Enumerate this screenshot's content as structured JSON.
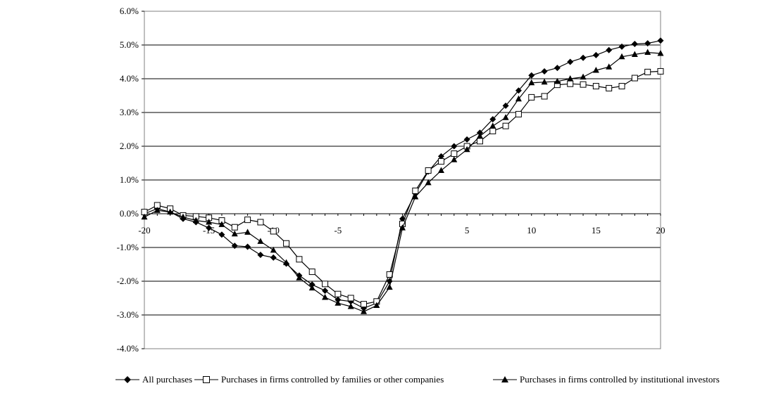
{
  "chart_data": {
    "type": "line",
    "title": "",
    "xlabel": "",
    "ylabel": "",
    "xlim": [
      -20,
      20
    ],
    "ylim": [
      -4.0,
      6.0
    ],
    "x_ticks": [
      -20,
      -15,
      -10,
      -5,
      0,
      5,
      10,
      15,
      20
    ],
    "x_tick_labels": [
      "-20",
      "-15",
      "-10",
      "-5",
      "",
      "5",
      "10",
      "15",
      "20"
    ],
    "y_ticks": [
      -4,
      -3,
      -2,
      -1,
      0,
      1,
      2,
      3,
      4,
      5,
      6
    ],
    "y_tick_labels": [
      "-4.0%",
      "-3.0%",
      "-2.0%",
      "-1.0%",
      "0.0%",
      "1.0%",
      "2.0%",
      "3.0%",
      "4.0%",
      "5.0%",
      "6.0%"
    ],
    "grid": "horizontal",
    "legend_position": "bottom",
    "x": [
      -20,
      -19,
      -18,
      -17,
      -16,
      -15,
      -14,
      -13,
      -12,
      -11,
      -10,
      -9,
      -8,
      -7,
      -6,
      -5,
      -4,
      -3,
      -2,
      -1,
      0,
      1,
      2,
      3,
      4,
      5,
      6,
      7,
      8,
      9,
      10,
      11,
      12,
      13,
      14,
      15,
      16,
      17,
      18,
      19,
      20
    ],
    "series": [
      {
        "name": "All purchases",
        "marker": "diamond-filled",
        "color": "#000000",
        "values": [
          0.0,
          0.15,
          0.05,
          -0.15,
          -0.25,
          -0.42,
          -0.62,
          -0.95,
          -0.98,
          -1.22,
          -1.3,
          -1.48,
          -1.83,
          -2.1,
          -2.28,
          -2.55,
          -2.6,
          -2.8,
          -2.65,
          -2.0,
          -0.15,
          0.6,
          1.25,
          1.7,
          2.0,
          2.2,
          2.4,
          2.8,
          3.2,
          3.65,
          4.1,
          4.22,
          4.32,
          4.5,
          4.62,
          4.7,
          4.85,
          4.95,
          5.03,
          5.05,
          5.13
        ]
      },
      {
        "name": "Purchases in firms controlled by families or other companies",
        "marker": "square-open",
        "color": "#000000",
        "values": [
          0.05,
          0.25,
          0.15,
          -0.05,
          -0.08,
          -0.12,
          -0.2,
          -0.4,
          -0.18,
          -0.25,
          -0.52,
          -0.88,
          -1.35,
          -1.72,
          -2.08,
          -2.38,
          -2.5,
          -2.68,
          -2.6,
          -1.8,
          -0.3,
          0.68,
          1.28,
          1.55,
          1.78,
          2.0,
          2.15,
          2.45,
          2.6,
          2.95,
          3.45,
          3.48,
          3.82,
          3.85,
          3.83,
          3.78,
          3.72,
          3.78,
          4.02,
          4.2,
          4.22
        ]
      },
      {
        "name": "Purchases in firms controlled by institutional investors",
        "marker": "triangle-filled",
        "color": "#000000",
        "values": [
          -0.1,
          0.1,
          0.05,
          -0.1,
          -0.2,
          -0.25,
          -0.32,
          -0.6,
          -0.55,
          -0.82,
          -1.08,
          -1.45,
          -1.9,
          -2.2,
          -2.48,
          -2.65,
          -2.75,
          -2.9,
          -2.72,
          -2.18,
          -0.42,
          0.5,
          0.92,
          1.28,
          1.6,
          1.9,
          2.3,
          2.6,
          2.85,
          3.4,
          3.88,
          3.9,
          3.92,
          4.0,
          4.05,
          4.25,
          4.35,
          4.65,
          4.72,
          4.78,
          4.75
        ]
      }
    ]
  }
}
